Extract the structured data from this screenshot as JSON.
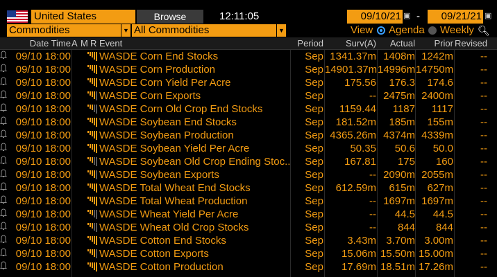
{
  "header": {
    "country": "United States",
    "browse_label": "Browse",
    "clock": "12:11:05",
    "date_from": "09/10/21",
    "date_to": "09/21/21",
    "date_separator": "-",
    "category": "Commodities",
    "subcategory": "All Commodities",
    "view_label": "View",
    "agenda_label": "Agenda",
    "weekly_label": "Weekly",
    "view_selected": "Agenda"
  },
  "columns": {
    "date_time": "Date Time",
    "a": "A",
    "m": "M",
    "r": "R",
    "event": "Event",
    "period": "Period",
    "survey": "Surv(A)",
    "actual": "Actual",
    "prior": "Prior",
    "revised": "Revised"
  },
  "rows": [
    {
      "date": "09/10 18:00",
      "event": "WASDE Corn End Stocks",
      "period": "Sep",
      "survey": "1341.37m",
      "actual": "1408m",
      "prior": "1242m",
      "revised": "--",
      "relevance": 5
    },
    {
      "date": "09/10 18:00",
      "event": "WASDE Corn Production",
      "period": "Sep",
      "survey": "14901.37m",
      "actual": "14996m",
      "prior": "14750m",
      "revised": "--",
      "relevance": 5
    },
    {
      "date": "09/10 18:00",
      "event": "WASDE Corn Yield Per Acre",
      "period": "Sep",
      "survey": "175.56",
      "actual": "176.3",
      "prior": "174.6",
      "revised": "--",
      "relevance": 5
    },
    {
      "date": "09/10 18:00",
      "event": "WASDE Corn Exports",
      "period": "Sep",
      "survey": "--",
      "actual": "2475m",
      "prior": "2400m",
      "revised": "--",
      "relevance": 4
    },
    {
      "date": "09/10 18:00",
      "event": "WASDE Corn Old Crop End Stocks",
      "period": "Sep",
      "survey": "1159.44",
      "actual": "1187",
      "prior": "1117",
      "revised": "--",
      "relevance": 3
    },
    {
      "date": "09/10 18:00",
      "event": "WASDE Soybean End Stocks",
      "period": "Sep",
      "survey": "181.52m",
      "actual": "185m",
      "prior": "155m",
      "revised": "--",
      "relevance": 5
    },
    {
      "date": "09/10 18:00",
      "event": "WASDE Soybean Production",
      "period": "Sep",
      "survey": "4365.26m",
      "actual": "4374m",
      "prior": "4339m",
      "revised": "--",
      "relevance": 5
    },
    {
      "date": "09/10 18:00",
      "event": "WASDE Soybean Yield Per Acre",
      "period": "Sep",
      "survey": "50.35",
      "actual": "50.6",
      "prior": "50.0",
      "revised": "--",
      "relevance": 5
    },
    {
      "date": "09/10 18:00",
      "event": "WASDE Soybean Old Crop Ending Stoc...",
      "period": "Sep",
      "survey": "167.81",
      "actual": "175",
      "prior": "160",
      "revised": "--",
      "relevance": 3
    },
    {
      "date": "09/10 18:00",
      "event": "WASDE Soybean Exports",
      "period": "Sep",
      "survey": "--",
      "actual": "2090m",
      "prior": "2055m",
      "revised": "--",
      "relevance": 4
    },
    {
      "date": "09/10 18:00",
      "event": "WASDE Total Wheat End Stocks",
      "period": "Sep",
      "survey": "612.59m",
      "actual": "615m",
      "prior": "627m",
      "revised": "--",
      "relevance": 5
    },
    {
      "date": "09/10 18:00",
      "event": "WASDE Total Wheat Production",
      "period": "Sep",
      "survey": "--",
      "actual": "1697m",
      "prior": "1697m",
      "revised": "--",
      "relevance": 5
    },
    {
      "date": "09/10 18:00",
      "event": "WASDE Wheat Yield Per Acre",
      "period": "Sep",
      "survey": "--",
      "actual": "44.5",
      "prior": "44.5",
      "revised": "--",
      "relevance": 3
    },
    {
      "date": "09/10 18:00",
      "event": "WASDE Wheat Old Crop Stocks",
      "period": "Sep",
      "survey": "--",
      "actual": "844",
      "prior": "844",
      "revised": "--",
      "relevance": 3
    },
    {
      "date": "09/10 18:00",
      "event": "WASDE Cotton End Stocks",
      "period": "Sep",
      "survey": "3.43m",
      "actual": "3.70m",
      "prior": "3.00m",
      "revised": "--",
      "relevance": 5
    },
    {
      "date": "09/10 18:00",
      "event": "WASDE Cotton Exports",
      "period": "Sep",
      "survey": "15.06m",
      "actual": "15.50m",
      "prior": "15.00m",
      "revised": "--",
      "relevance": 4
    },
    {
      "date": "09/10 18:00",
      "event": "WASDE Cotton Production",
      "period": "Sep",
      "survey": "17.69m",
      "actual": "18.51m",
      "prior": "17.26m",
      "revised": "--",
      "relevance": 5
    }
  ],
  "colors": {
    "accent": "#f39c12",
    "bar_on": "#f39c12",
    "bar_off": "#5a5a5a"
  }
}
